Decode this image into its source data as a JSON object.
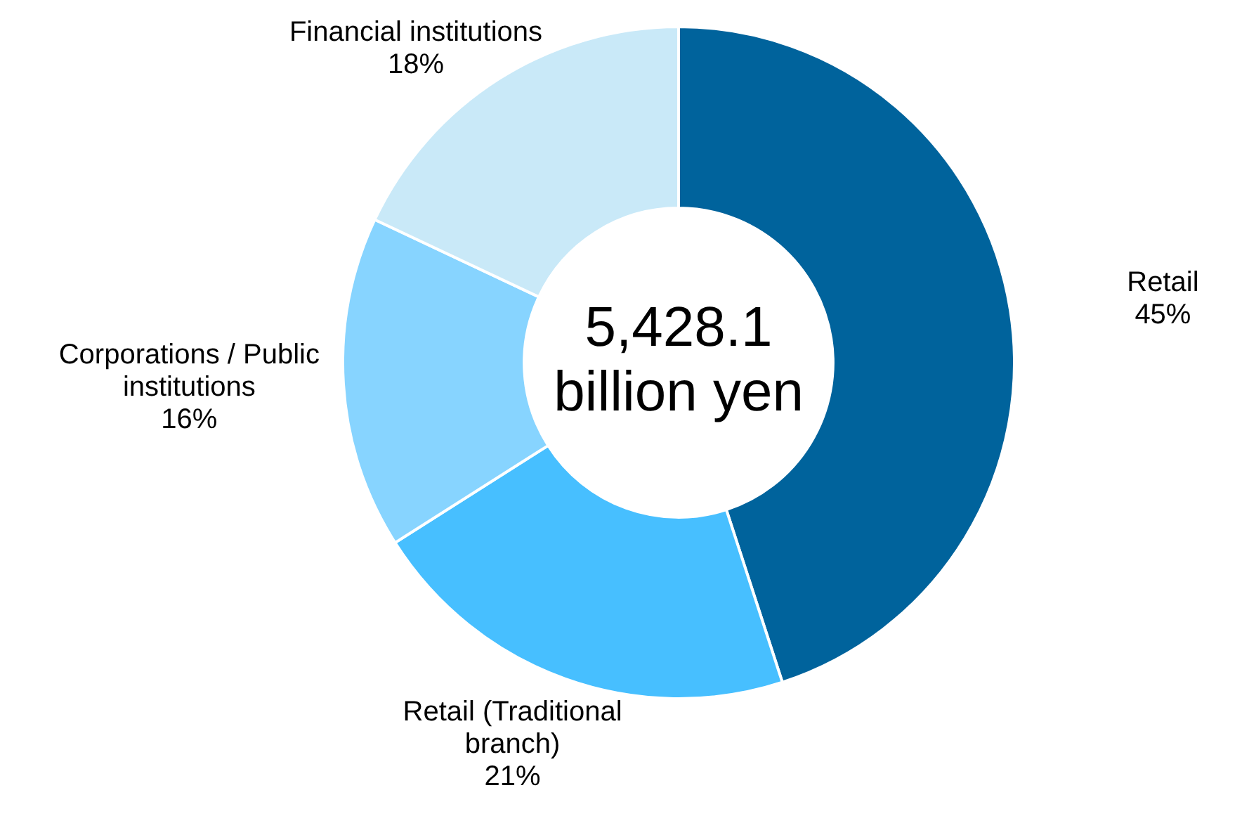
{
  "chart_data": {
    "type": "donut",
    "categories": [
      "Retail",
      "Retail (Traditional branch)",
      "Corporations / Public institutions",
      "Financial institutions"
    ],
    "values": [
      45,
      21,
      16,
      18
    ],
    "value_labels": [
      "45%",
      "21%",
      "16%",
      "18%"
    ],
    "colors": [
      "#00639c",
      "#47bfff",
      "#87d4ff",
      "#c9e9f8"
    ],
    "annotations": [
      "5,428.1 billion yen"
    ],
    "legend": false
  }
}
